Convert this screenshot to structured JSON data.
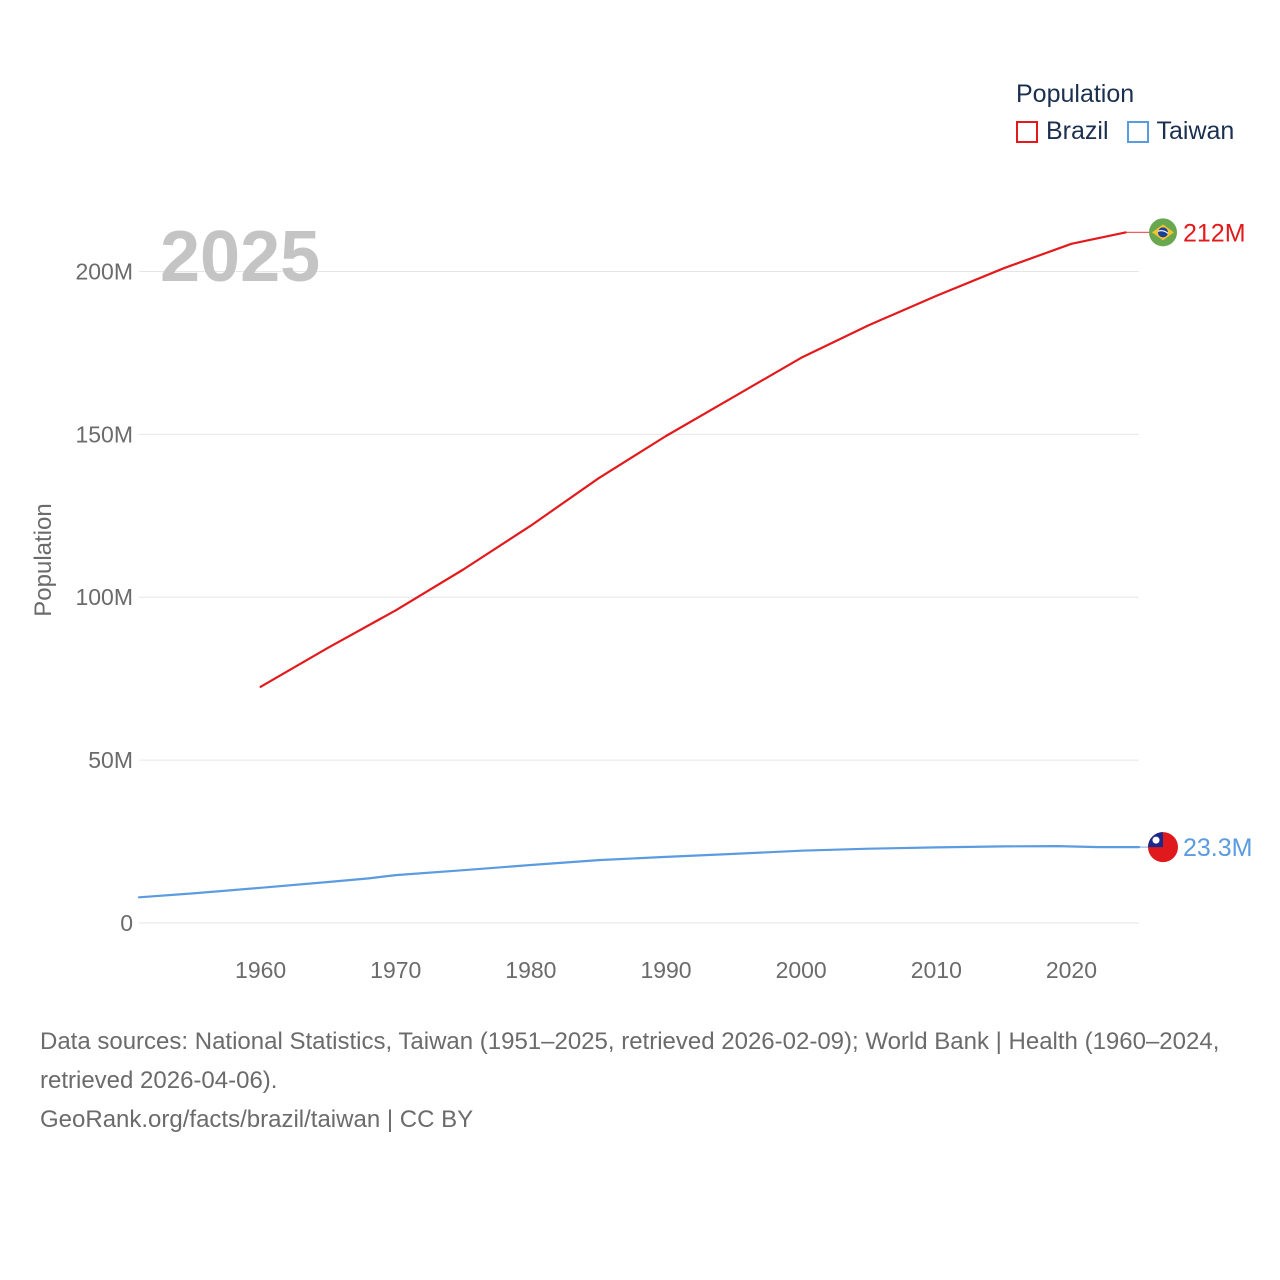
{
  "legend": {
    "title": "Population",
    "items": [
      {
        "label": "Brazil",
        "color": "#e31a1c"
      },
      {
        "label": "Taiwan",
        "color": "#5b9be0"
      }
    ]
  },
  "footer": {
    "sources": "Data sources: National Statistics, Taiwan (1951–2025, retrieved 2026-02-09); World Bank | Health (1960–2024, retrieved 2026-04-06).",
    "credit": "GeoRank.org/facts/brazil/taiwan | CC BY"
  },
  "chart_data": {
    "type": "line",
    "title": "",
    "year_label": "2025",
    "xlabel": "",
    "ylabel": "Population",
    "xlim": [
      1951,
      2025
    ],
    "ylim": [
      0,
      225000000
    ],
    "x_ticks": [
      1960,
      1970,
      1980,
      1990,
      2000,
      2010,
      2020
    ],
    "y_ticks": [
      {
        "value": 0,
        "label": "0"
      },
      {
        "value": 50000000,
        "label": "50M"
      },
      {
        "value": 100000000,
        "label": "100M"
      },
      {
        "value": 150000000,
        "label": "150M"
      },
      {
        "value": 200000000,
        "label": "200M"
      }
    ],
    "grid": true,
    "series": [
      {
        "name": "Brazil",
        "color": "#e31a1c",
        "end_label": "212M",
        "end_value": 212000000,
        "flag": "brazil-flag-icon",
        "x": [
          1960,
          1965,
          1970,
          1975,
          1980,
          1985,
          1990,
          1995,
          2000,
          2005,
          2010,
          2015,
          2020,
          2024
        ],
        "values": [
          72500000,
          84500000,
          96000000,
          108500000,
          122000000,
          136500000,
          149500000,
          161500000,
          173500000,
          183500000,
          192500000,
          201000000,
          208500000,
          212000000
        ]
      },
      {
        "name": "Taiwan",
        "color": "#5b9be0",
        "end_label": "23.3M",
        "end_value": 23300000,
        "flag": "taiwan-flag-icon",
        "x": [
          1951,
          1955,
          1960,
          1965,
          1968,
          1970,
          1975,
          1980,
          1985,
          1990,
          1995,
          2000,
          2005,
          2010,
          2015,
          2019,
          2022,
          2025
        ],
        "values": [
          7900000,
          9100000,
          10800000,
          12600000,
          13700000,
          14700000,
          16200000,
          17800000,
          19300000,
          20300000,
          21200000,
          22200000,
          22800000,
          23200000,
          23500000,
          23600000,
          23300000,
          23300000
        ]
      }
    ]
  }
}
